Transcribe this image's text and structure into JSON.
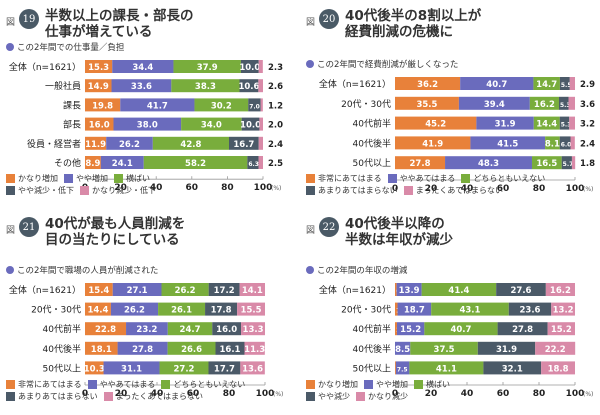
{
  "colors": [
    "#e8813a",
    "#6a6bbd",
    "#79ad3c",
    "#4b5a68",
    "#d98aa8"
  ],
  "figure_prefix": "図",
  "axis_unit": "(%)",
  "chart_data": [
    {
      "type": "bar",
      "stacked": true,
      "orientation": "horizontal",
      "fig_number": "19",
      "title_lines": [
        "半数以上の課長・部長の",
        "仕事が増えている"
      ],
      "subtitle": "この2年間での仕事量／負担",
      "categories": [
        "全体（n=1621）",
        "一般社員",
        "課長",
        "部長",
        "役員・経営者",
        "その他"
      ],
      "legend": [
        [
          "かなり増加",
          "やや増加",
          "横ばい"
        ],
        [
          "やや減少・低下",
          "かなり減少・低下"
        ]
      ],
      "series": [
        {
          "name": "かなり増加",
          "values": [
            15.3,
            14.9,
            19.8,
            16.0,
            11.9,
            8.9
          ]
        },
        {
          "name": "やや増加",
          "values": [
            34.4,
            33.6,
            41.7,
            38.0,
            26.2,
            24.1
          ]
        },
        {
          "name": "横ばい",
          "values": [
            37.9,
            38.3,
            30.2,
            34.0,
            42.8,
            58.2
          ]
        },
        {
          "name": "やや減少・低下",
          "values": [
            10.0,
            10.6,
            7.0,
            10.0,
            16.7,
            6.3
          ]
        },
        {
          "name": "かなり減少・低下",
          "values": [
            2.3,
            2.6,
            1.2,
            2.0,
            2.4,
            2.5
          ]
        }
      ],
      "outside_label_series": 4,
      "xlim": [
        0,
        100
      ],
      "xticks": [
        "0",
        "20",
        "40",
        "60",
        "80",
        "100"
      ]
    },
    {
      "type": "bar",
      "stacked": true,
      "orientation": "horizontal",
      "fig_number": "20",
      "title_lines": [
        "40代後半の8割以上が",
        "経費削減の危機に"
      ],
      "subtitle": "この2年間で経費削減が厳しくなった",
      "categories": [
        "全体（n=1621）",
        "20代・30代",
        "40代前半",
        "40代後半",
        "50代以上"
      ],
      "legend": [
        [
          "非常にあてはまる",
          "ややあてはまる",
          "どちらともいえない"
        ],
        [
          "あまりあてはまらない",
          "まったくあてはまらない"
        ]
      ],
      "series": [
        {
          "name": "非常にあてはまる",
          "values": [
            36.2,
            35.5,
            45.2,
            41.9,
            27.8
          ]
        },
        {
          "name": "ややあてはまる",
          "values": [
            40.7,
            39.4,
            31.9,
            41.5,
            48.3
          ]
        },
        {
          "name": "どちらともいえない",
          "values": [
            14.7,
            16.2,
            14.4,
            8.1,
            16.5
          ]
        },
        {
          "name": "あまりあてはまらない",
          "values": [
            5.5,
            5.3,
            5.3,
            6.0,
            5.7
          ]
        },
        {
          "name": "まったくあてはまらない",
          "values": [
            2.9,
            3.6,
            3.2,
            2.4,
            1.8
          ]
        }
      ],
      "outside_label_series": 4,
      "xlim": [
        0,
        100
      ],
      "xticks": [
        "0",
        "20",
        "40",
        "60",
        "80",
        "100"
      ]
    },
    {
      "type": "bar",
      "stacked": true,
      "orientation": "horizontal",
      "fig_number": "21",
      "title_lines": [
        "40代が最も人員削減を",
        "目の当たりにしている"
      ],
      "subtitle": "この2年間で職場の人員が削減された",
      "categories": [
        "全体（n=1621）",
        "20代・30代",
        "40代前半",
        "40代後半",
        "50代以上"
      ],
      "legend": [
        [
          "非常にあてはまる",
          "ややあてはまる",
          "どちらともいえない"
        ],
        [
          "あまりあてはまらない",
          "まったくあてはまらない"
        ]
      ],
      "series": [
        {
          "name": "非常にあてはまる",
          "values": [
            15.4,
            14.4,
            22.8,
            18.1,
            10.3
          ]
        },
        {
          "name": "ややあてはまる",
          "values": [
            27.1,
            26.2,
            23.2,
            27.8,
            31.1
          ]
        },
        {
          "name": "どちらともいえない",
          "values": [
            26.2,
            26.1,
            24.7,
            26.6,
            27.2
          ]
        },
        {
          "name": "あまりあてはまらない",
          "values": [
            17.2,
            17.8,
            16.0,
            16.1,
            17.7
          ]
        },
        {
          "name": "まったくあてはまらない",
          "values": [
            14.1,
            15.5,
            13.3,
            11.3,
            13.6
          ]
        }
      ],
      "outside_label_series": -1,
      "xlim": [
        0,
        100
      ],
      "xticks": [
        "0",
        "20",
        "40",
        "60",
        "80",
        "100"
      ]
    },
    {
      "type": "bar",
      "stacked": true,
      "orientation": "horizontal",
      "fig_number": "22",
      "title_lines": [
        "40代後半以降の",
        "半数は年収が減少"
      ],
      "subtitle": "この2年間の年収の増減",
      "categories": [
        "全体（n=1621）",
        "20代・30代",
        "40代前半",
        "40代後半",
        "50代以上"
      ],
      "legend": [
        [
          "かなり増加",
          "やや増加",
          "横ばい"
        ],
        [
          "やや減少",
          "かなり減少"
        ]
      ],
      "series": [
        {
          "name": "かなり増加",
          "values": [
            0.9,
            1.4,
            1.1,
            0,
            0.5
          ]
        },
        {
          "name": "やや増加",
          "values": [
            13.9,
            18.7,
            15.2,
            8.5,
            7.5
          ]
        },
        {
          "name": "横ばい",
          "values": [
            41.4,
            43.1,
            40.7,
            37.5,
            41.1
          ]
        },
        {
          "name": "やや減少",
          "values": [
            27.6,
            23.6,
            27.8,
            31.9,
            32.1
          ]
        },
        {
          "name": "かなり減少",
          "values": [
            16.2,
            13.2,
            15.2,
            22.2,
            18.8
          ]
        }
      ],
      "outside_label_series": -1,
      "xlim": [
        0,
        100
      ],
      "xticks": [
        "0",
        "20",
        "40",
        "60",
        "80",
        "100"
      ]
    }
  ]
}
